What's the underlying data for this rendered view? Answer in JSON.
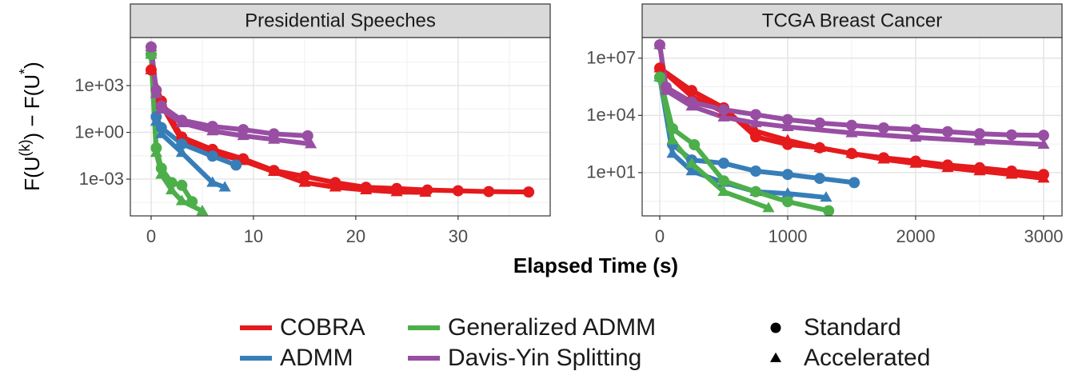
{
  "y_label": [
    "F(U",
    "(k)",
    ") − F(U",
    "*",
    ")"
  ],
  "x_label": "Elapsed Time (s)",
  "legend": {
    "methods": [
      {
        "name": "COBRA",
        "color": "#e41a1c"
      },
      {
        "name": "ADMM",
        "color": "#377eb8"
      },
      {
        "name": "Generalized ADMM",
        "color": "#4daf4a"
      },
      {
        "name": "Davis-Yin Splitting",
        "color": "#984ea3"
      }
    ],
    "variants": [
      {
        "name": "Standard",
        "shape": "circle"
      },
      {
        "name": "Accelerated",
        "shape": "triangle"
      }
    ]
  },
  "chart_data": [
    {
      "type": "line",
      "title": "Presidential Speeches",
      "log_y": true,
      "grid": true,
      "xlim": [
        -2.03,
        39
      ],
      "xticks": [
        0,
        10,
        20,
        30
      ],
      "ylim": [
        4.4e-06,
        1200000
      ],
      "yticks": [
        {
          "value": 0.001,
          "label": "1e-03"
        },
        {
          "value": 1,
          "label": "1e+00"
        },
        {
          "value": 1000,
          "label": "1e+03"
        }
      ],
      "series": [
        {
          "name": "COBRA",
          "variant": "Standard",
          "x": [
            0,
            1,
            3,
            6,
            9,
            12,
            15,
            18,
            21,
            24,
            27,
            30,
            33,
            36.9
          ],
          "values": [
            10000,
            100,
            0.5,
            0.08,
            0.02,
            0.0036,
            0.0015,
            0.0006,
            0.0003,
            0.00025,
            0.0002,
            0.00018,
            0.00016,
            0.00015
          ]
        },
        {
          "name": "COBRA",
          "variant": "Accelerated",
          "x": [
            0,
            1,
            3,
            6,
            9,
            12,
            15,
            18,
            21,
            24,
            26.8
          ],
          "values": [
            10000,
            60,
            0.3,
            0.05,
            0.015,
            0.003,
            0.0006,
            0.0003,
            0.0002,
            0.00015,
            0.00014
          ]
        },
        {
          "name": "ADMM",
          "variant": "Standard",
          "x": [
            0,
            0.5,
            1,
            3,
            6,
            8.3
          ],
          "values": [
            100000,
            10,
            2,
            0.18,
            0.03,
            0.008
          ]
        },
        {
          "name": "ADMM",
          "variant": "Accelerated",
          "x": [
            0,
            0.5,
            1,
            3,
            6,
            7.2
          ],
          "values": [
            100000,
            5,
            0.8,
            0.05,
            0.0006,
            0.0003
          ]
        },
        {
          "name": "Generalized ADMM",
          "variant": "Standard",
          "x": [
            0,
            0.5,
            1,
            2,
            3,
            4
          ],
          "values": [
            100000,
            0.1,
            0.005,
            0.0006,
            0.0004,
            3.6e-05
          ]
        },
        {
          "name": "Generalized ADMM",
          "variant": "Accelerated",
          "x": [
            0,
            0.5,
            1,
            2,
            3,
            5
          ],
          "values": [
            100000,
            0.05,
            0.002,
            0.0002,
            4e-05,
            9e-06
          ]
        },
        {
          "name": "Davis-Yin Splitting",
          "variant": "Standard",
          "x": [
            0,
            0.5,
            1,
            3,
            6,
            9,
            12,
            15.3
          ],
          "values": [
            300000,
            500,
            50,
            6,
            2.4,
            1.5,
            0.8,
            0.6
          ]
        },
        {
          "name": "Davis-Yin Splitting",
          "variant": "Accelerated",
          "x": [
            0,
            0.5,
            1,
            3,
            6,
            9,
            12,
            15.6
          ],
          "values": [
            300000,
            300,
            30,
            4,
            1.2,
            0.6,
            0.35,
            0.18
          ]
        }
      ]
    },
    {
      "type": "line",
      "title": "TCGA Breast Cancer",
      "log_y": true,
      "grid": true,
      "xlim": [
        -137.5,
        3144
      ],
      "xticks": [
        0,
        1000,
        2000,
        3000
      ],
      "ylim": [
        0.054,
        120000000
      ],
      "yticks": [
        {
          "value": 10,
          "label": "1e+01"
        },
        {
          "value": 10000,
          "label": "1e+04"
        },
        {
          "value": 10000000,
          "label": "1e+07"
        }
      ],
      "series": [
        {
          "name": "COBRA",
          "variant": "Standard",
          "x": [
            0,
            250,
            500,
            750,
            1000,
            1250,
            1500,
            1750,
            2000,
            2250,
            2500,
            2750,
            3000
          ],
          "values": [
            3000000,
            200000,
            25000,
            760,
            300,
            200,
            100,
            60,
            40,
            25,
            18,
            12,
            8
          ]
        },
        {
          "name": "COBRA",
          "variant": "Accelerated",
          "x": [
            0,
            250,
            500,
            750,
            1000,
            1250,
            1500,
            1750,
            2000,
            2250,
            2500,
            2750,
            3000
          ],
          "values": [
            3000000,
            100000,
            15000,
            1500,
            500,
            200,
            100,
            50,
            30,
            18,
            12,
            8,
            5
          ]
        },
        {
          "name": "ADMM",
          "variant": "Standard",
          "x": [
            0,
            100,
            250,
            500,
            750,
            1000,
            1250,
            1520
          ],
          "values": [
            1000000,
            300,
            46,
            31,
            12,
            8,
            5,
            3
          ]
        },
        {
          "name": "ADMM",
          "variant": "Accelerated",
          "x": [
            0,
            100,
            250,
            500,
            750,
            1000,
            1300
          ],
          "values": [
            1000000,
            100,
            12,
            3,
            1,
            0.8,
            0.5
          ]
        },
        {
          "name": "Generalized ADMM",
          "variant": "Standard",
          "x": [
            0,
            100,
            270,
            500,
            750,
            1000,
            1320
          ],
          "values": [
            1000000,
            2000,
            290,
            3.7,
            1,
            0.3,
            0.1
          ]
        },
        {
          "name": "Generalized ADMM",
          "variant": "Accelerated",
          "x": [
            0,
            100,
            250,
            500,
            850
          ],
          "values": [
            1000000,
            500,
            30,
            1,
            0.14
          ]
        },
        {
          "name": "Davis-Yin Splitting",
          "variant": "Standard",
          "x": [
            0,
            50,
            250,
            500,
            750,
            1000,
            1250,
            1500,
            1750,
            2000,
            2250,
            2500,
            2750,
            3000
          ],
          "values": [
            50000000,
            300000,
            50000,
            20000,
            11000,
            6000,
            4000,
            3000,
            2200,
            1800,
            1400,
            1100,
            950,
            900
          ]
        },
        {
          "name": "Davis-Yin Splitting",
          "variant": "Accelerated",
          "x": [
            0,
            50,
            250,
            500,
            750,
            1000,
            1500,
            2000,
            2500,
            3000
          ],
          "values": [
            50000000,
            200000,
            30000,
            8000,
            4000,
            2500,
            1200,
            700,
            450,
            300
          ]
        }
      ]
    }
  ]
}
